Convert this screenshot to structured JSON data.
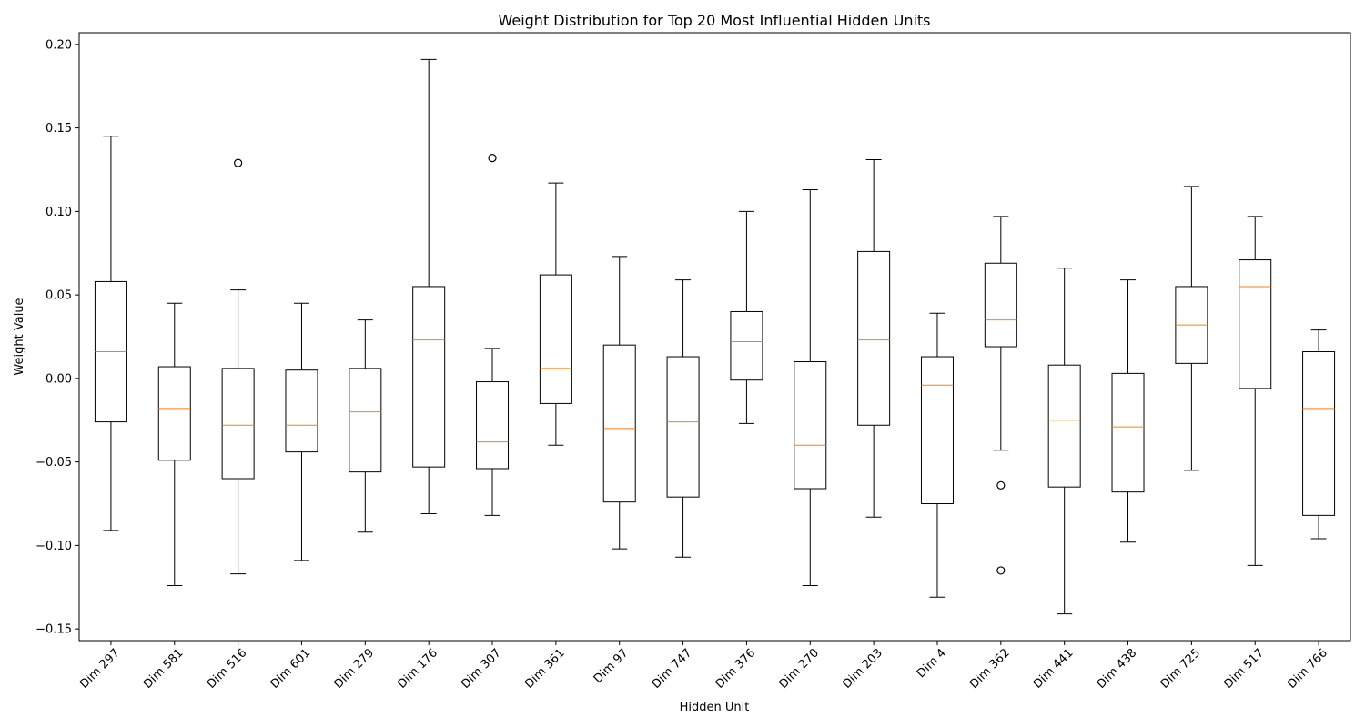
{
  "chart_data": {
    "type": "boxplot",
    "title": "Weight Distribution for Top 20 Most Influential Hidden Units",
    "xlabel": "Hidden Unit",
    "ylabel": "Weight Value",
    "ylim": [
      -0.157,
      0.207
    ],
    "yticks": [
      -0.15,
      -0.1,
      -0.05,
      0.0,
      0.05,
      0.1,
      0.15,
      0.2
    ],
    "ytick_labels": [
      "−0.15",
      "−0.10",
      "−0.05",
      "0.00",
      "0.05",
      "0.10",
      "0.15",
      "0.20"
    ],
    "grid": false,
    "legend": "none",
    "colors": {
      "box": "#000000",
      "median": "#ff7f0e",
      "flier": "#000000"
    },
    "categories": [
      "Dim 297",
      "Dim 581",
      "Dim 516",
      "Dim 601",
      "Dim 279",
      "Dim 176",
      "Dim 307",
      "Dim 361",
      "Dim 97",
      "Dim 747",
      "Dim 376",
      "Dim 270",
      "Dim 203",
      "Dim 4",
      "Dim 362",
      "Dim 441",
      "Dim 438",
      "Dim 725",
      "Dim 517",
      "Dim 766"
    ],
    "boxes": [
      {
        "whislo": -0.091,
        "q1": -0.026,
        "med": 0.016,
        "q3": 0.058,
        "whishi": 0.145,
        "fliers": []
      },
      {
        "whislo": -0.124,
        "q1": -0.049,
        "med": -0.018,
        "q3": 0.007,
        "whishi": 0.045,
        "fliers": []
      },
      {
        "whislo": -0.117,
        "q1": -0.06,
        "med": -0.028,
        "q3": 0.006,
        "whishi": 0.053,
        "fliers": [
          0.129
        ]
      },
      {
        "whislo": -0.109,
        "q1": -0.044,
        "med": -0.028,
        "q3": 0.005,
        "whishi": 0.045,
        "fliers": []
      },
      {
        "whislo": -0.092,
        "q1": -0.056,
        "med": -0.02,
        "q3": 0.006,
        "whishi": 0.035,
        "fliers": []
      },
      {
        "whislo": -0.081,
        "q1": -0.053,
        "med": 0.023,
        "q3": 0.055,
        "whishi": 0.191,
        "fliers": []
      },
      {
        "whislo": -0.082,
        "q1": -0.054,
        "med": -0.038,
        "q3": -0.002,
        "whishi": 0.018,
        "fliers": [
          0.132
        ]
      },
      {
        "whislo": -0.04,
        "q1": -0.015,
        "med": 0.006,
        "q3": 0.062,
        "whishi": 0.117,
        "fliers": []
      },
      {
        "whislo": -0.102,
        "q1": -0.074,
        "med": -0.03,
        "q3": 0.02,
        "whishi": 0.073,
        "fliers": []
      },
      {
        "whislo": -0.107,
        "q1": -0.071,
        "med": -0.026,
        "q3": 0.013,
        "whishi": 0.059,
        "fliers": []
      },
      {
        "whislo": -0.027,
        "q1": -0.001,
        "med": 0.022,
        "q3": 0.04,
        "whishi": 0.1,
        "fliers": []
      },
      {
        "whislo": -0.124,
        "q1": -0.066,
        "med": -0.04,
        "q3": 0.01,
        "whishi": 0.113,
        "fliers": []
      },
      {
        "whislo": -0.083,
        "q1": -0.028,
        "med": 0.023,
        "q3": 0.076,
        "whishi": 0.131,
        "fliers": []
      },
      {
        "whislo": -0.131,
        "q1": -0.075,
        "med": -0.004,
        "q3": 0.013,
        "whishi": 0.039,
        "fliers": []
      },
      {
        "whislo": -0.043,
        "q1": 0.019,
        "med": 0.035,
        "q3": 0.069,
        "whishi": 0.097,
        "fliers": [
          -0.064,
          -0.115
        ]
      },
      {
        "whislo": -0.141,
        "q1": -0.065,
        "med": -0.025,
        "q3": 0.008,
        "whishi": 0.066,
        "fliers": []
      },
      {
        "whislo": -0.098,
        "q1": -0.068,
        "med": -0.029,
        "q3": 0.003,
        "whishi": 0.059,
        "fliers": []
      },
      {
        "whislo": -0.055,
        "q1": 0.009,
        "med": 0.032,
        "q3": 0.055,
        "whishi": 0.115,
        "fliers": []
      },
      {
        "whislo": -0.112,
        "q1": -0.006,
        "med": 0.055,
        "q3": 0.071,
        "whishi": 0.097,
        "fliers": []
      },
      {
        "whislo": -0.096,
        "q1": -0.082,
        "med": -0.018,
        "q3": 0.016,
        "whishi": 0.029,
        "fliers": []
      }
    ]
  }
}
